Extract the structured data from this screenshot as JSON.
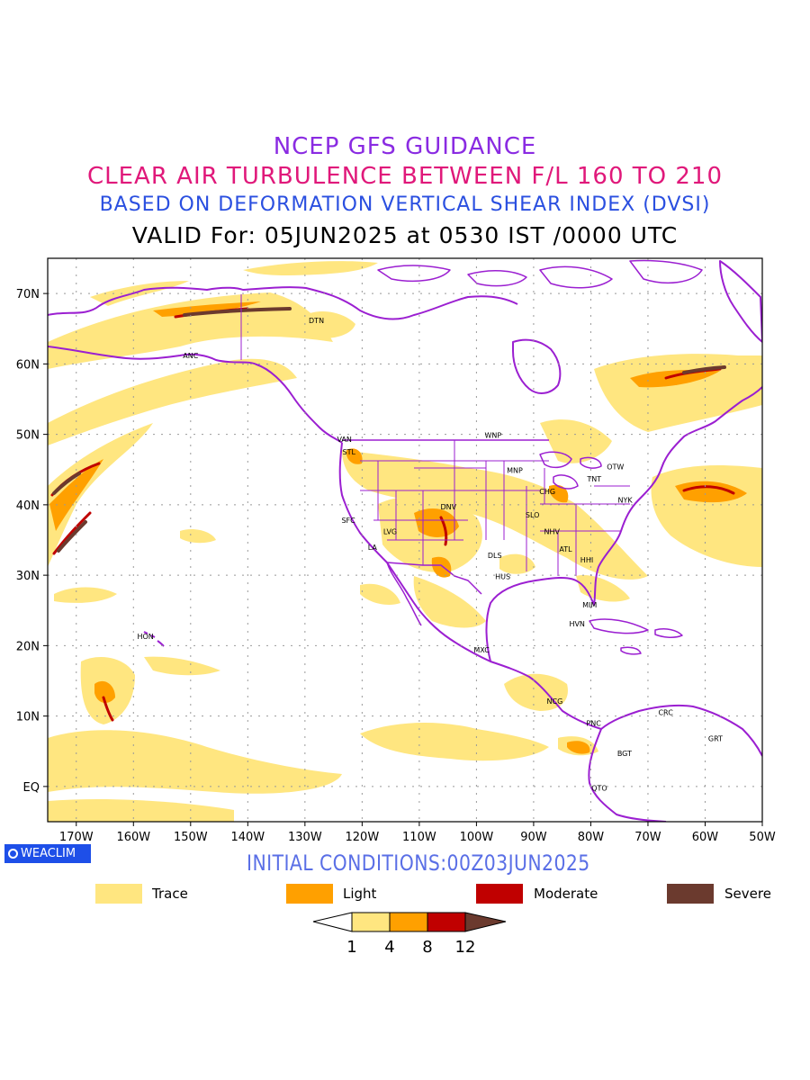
{
  "titles": {
    "line1": "NCEP GFS GUIDANCE",
    "line2": "CLEAR AIR TURBULENCE BETWEEN F/L 160 TO 210",
    "line3": "BASED ON DEFORMATION VERTICAL SHEAR INDEX (DVSI)",
    "line4": "VALID For: 05JUN2025 at 0530 IST /0000 UTC"
  },
  "map": {
    "lon_range": [
      -175,
      -50
    ],
    "lat_range": [
      -5,
      75
    ],
    "lat_ticks": [
      {
        "value": 70,
        "label": "70N"
      },
      {
        "value": 60,
        "label": "60N"
      },
      {
        "value": 50,
        "label": "50N"
      },
      {
        "value": 40,
        "label": "40N"
      },
      {
        "value": 30,
        "label": "30N"
      },
      {
        "value": 20,
        "label": "20N"
      },
      {
        "value": 10,
        "label": "10N"
      },
      {
        "value": 0,
        "label": "EQ"
      }
    ],
    "lon_ticks": [
      {
        "value": -170,
        "label": "170W"
      },
      {
        "value": -160,
        "label": "160W"
      },
      {
        "value": -150,
        "label": "150W"
      },
      {
        "value": -140,
        "label": "140W"
      },
      {
        "value": -130,
        "label": "130W"
      },
      {
        "value": -120,
        "label": "120W"
      },
      {
        "value": -110,
        "label": "110W"
      },
      {
        "value": -100,
        "label": "100W"
      },
      {
        "value": -90,
        "label": "90W"
      },
      {
        "value": -80,
        "label": "80W"
      },
      {
        "value": -70,
        "label": "70W"
      },
      {
        "value": -60,
        "label": "60W"
      },
      {
        "value": -50,
        "label": "50W"
      }
    ],
    "grid": true,
    "stations": [
      {
        "code": "ANC",
        "lon": -150.0,
        "lat": 61.2
      },
      {
        "code": "DTN",
        "lon": -128.0,
        "lat": 66.2
      },
      {
        "code": "VAN",
        "lon": -123.1,
        "lat": 49.3
      },
      {
        "code": "STL",
        "lon": -122.3,
        "lat": 47.5
      },
      {
        "code": "WNP",
        "lon": -97.1,
        "lat": 49.9
      },
      {
        "code": "MNP",
        "lon": -93.3,
        "lat": 44.9
      },
      {
        "code": "TNT",
        "lon": -79.4,
        "lat": 43.7
      },
      {
        "code": "OTW",
        "lon": -75.7,
        "lat": 45.4
      },
      {
        "code": "CHG",
        "lon": -87.6,
        "lat": 41.9
      },
      {
        "code": "NYK",
        "lon": -74.0,
        "lat": 40.7
      },
      {
        "code": "DNV",
        "lon": -104.9,
        "lat": 39.7
      },
      {
        "code": "SFC",
        "lon": -122.4,
        "lat": 37.8
      },
      {
        "code": "SLO",
        "lon": -90.2,
        "lat": 38.6
      },
      {
        "code": "LVG",
        "lon": -115.1,
        "lat": 36.2
      },
      {
        "code": "NHV",
        "lon": -86.8,
        "lat": 36.2
      },
      {
        "code": "LA",
        "lon": -118.2,
        "lat": 34.0
      },
      {
        "code": "ATL",
        "lon": -84.4,
        "lat": 33.7
      },
      {
        "code": "DLS",
        "lon": -96.8,
        "lat": 32.8
      },
      {
        "code": "HHI",
        "lon": -80.7,
        "lat": 32.2
      },
      {
        "code": "HUS",
        "lon": -95.4,
        "lat": 29.8
      },
      {
        "code": "MIM",
        "lon": -80.2,
        "lat": 25.8
      },
      {
        "code": "HVN",
        "lon": -82.4,
        "lat": 23.1
      },
      {
        "code": "HON",
        "lon": -157.9,
        "lat": 21.3
      },
      {
        "code": "MXC",
        "lon": -99.1,
        "lat": 19.4
      },
      {
        "code": "NCG",
        "lon": -86.3,
        "lat": 12.1
      },
      {
        "code": "CRC",
        "lon": -66.9,
        "lat": 10.5
      },
      {
        "code": "PNC",
        "lon": -79.5,
        "lat": 9.0
      },
      {
        "code": "GRT",
        "lon": -58.2,
        "lat": 6.8
      },
      {
        "code": "BGT",
        "lon": -74.1,
        "lat": 4.7
      },
      {
        "code": "QTO",
        "lon": -78.5,
        "lat": -0.2
      }
    ],
    "colors": {
      "trace": "#ffe680",
      "light": "#ffa000",
      "moderate": "#c00000",
      "severe": "#6b3a2e",
      "coastline": "#9b1fd1",
      "grid": "#999999"
    }
  },
  "initial_conditions": "INITIAL CONDITIONS:00Z03JUN2025",
  "logo_text": "WEACLIM",
  "legend": [
    {
      "label": "Trace",
      "color": "#ffe680"
    },
    {
      "label": "Light",
      "color": "#ffa000"
    },
    {
      "label": "Moderate",
      "color": "#c00000"
    },
    {
      "label": "Severe",
      "color": "#6b3a2e"
    }
  ],
  "colorbar": {
    "labels": [
      "1",
      "4",
      "8",
      "12"
    ],
    "colors": [
      "#ffe680",
      "#ffa000",
      "#c00000",
      "#6b3a2e"
    ]
  }
}
